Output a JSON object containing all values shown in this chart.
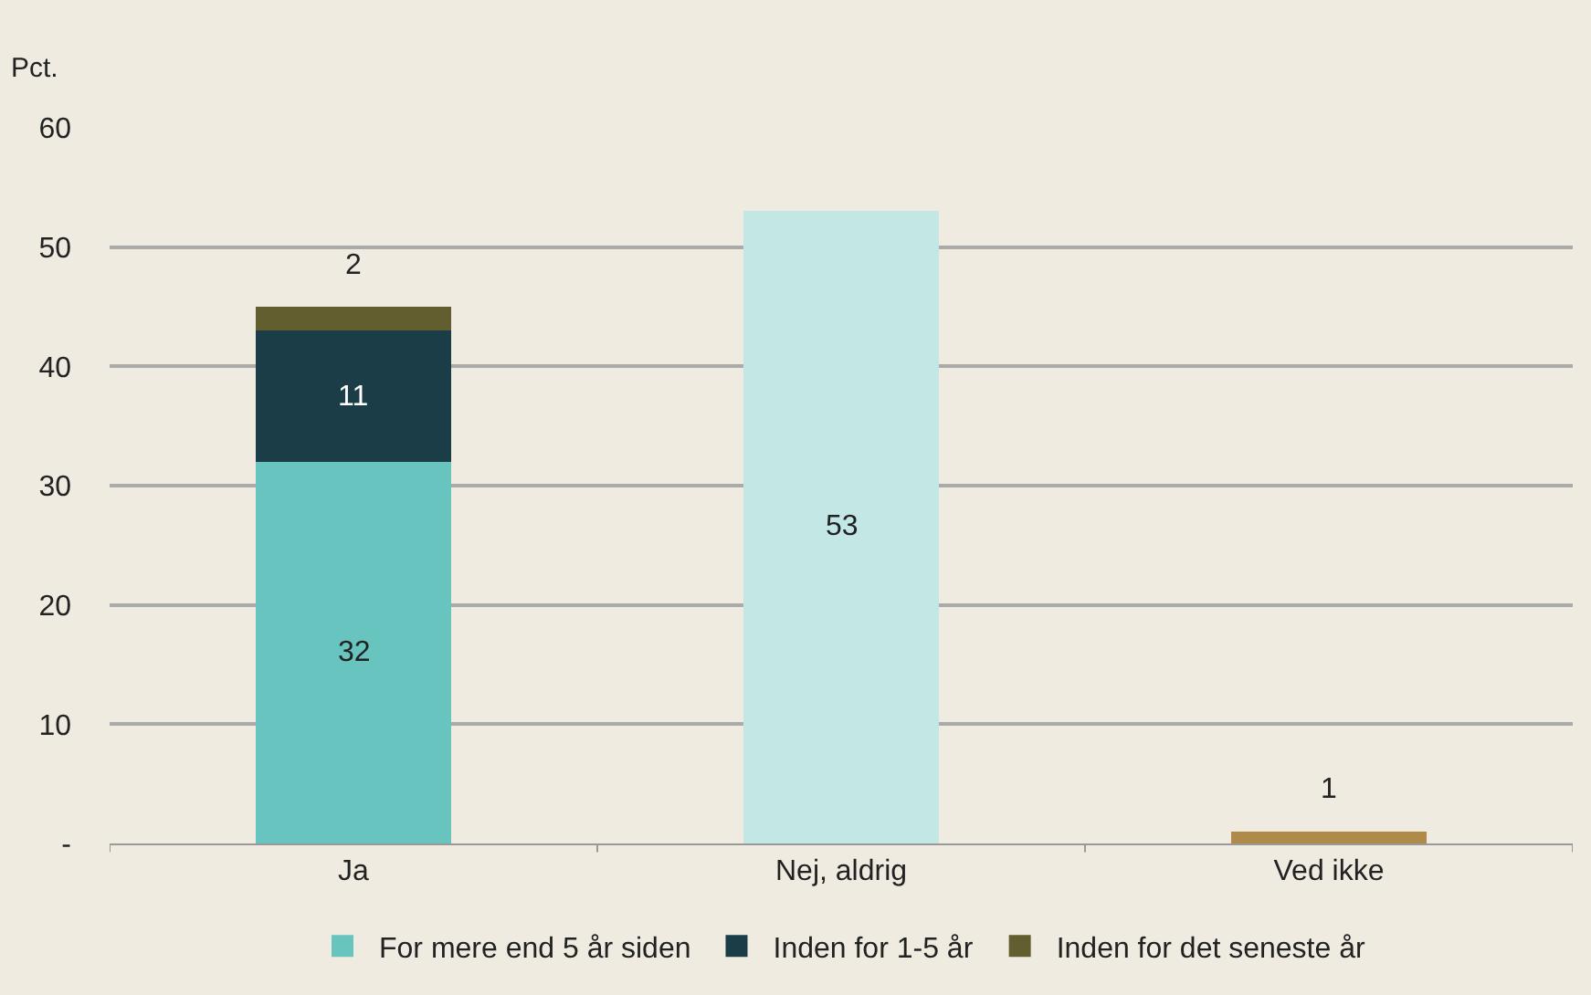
{
  "chart_data": {
    "type": "bar",
    "stacked": true,
    "ylabel": "Pct.",
    "categories": [
      "Ja",
      "Nej, aldrig",
      "Ved ikke"
    ],
    "series": [
      {
        "name": "For mere end 5 år siden",
        "color": "#68c4bf",
        "values": [
          32,
          null,
          null
        ]
      },
      {
        "name": "Inden for 1-5 år",
        "color": "#1b3d47",
        "values": [
          11,
          null,
          null
        ]
      },
      {
        "name": "Inden for det seneste år",
        "color": "#625e30",
        "values": [
          2,
          null,
          null
        ]
      },
      {
        "colors": [
          "#68c4bf",
          "#c2e7e5",
          "#b08a48"
        ],
        "values": [
          null,
          53,
          1
        ]
      }
    ],
    "ylim": [
      0,
      60
    ],
    "yticks": [
      {
        "value": 0,
        "label": "-"
      },
      10,
      20,
      30,
      40,
      50,
      60
    ],
    "grid": "y",
    "legend": "bottom",
    "data_labels": true
  }
}
